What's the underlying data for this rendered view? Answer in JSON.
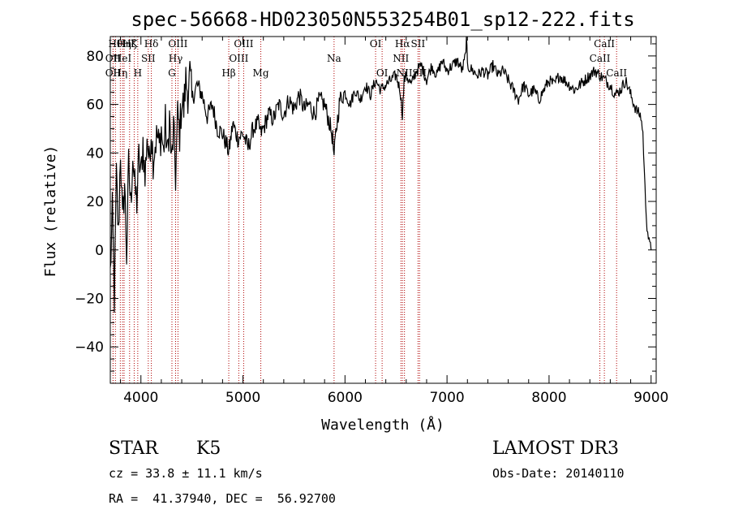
{
  "chart_data": {
    "type": "line",
    "title": "spec-56668-HD023050N553254B01_sp12-222.fits",
    "xlabel": "Wavelength (Å)",
    "ylabel": "Flux (relative)",
    "xlim": [
      3700,
      9050
    ],
    "ylim": [
      -55,
      88
    ],
    "xticks": [
      4000,
      5000,
      6000,
      7000,
      8000,
      9000
    ],
    "yticks": [
      -40,
      -20,
      0,
      20,
      40,
      60,
      80
    ],
    "ytick_labels": [
      "−40",
      "−20",
      "0",
      "20",
      "40",
      "60",
      "80"
    ],
    "series": [
      {
        "name": "flux",
        "x": [
          3700,
          3720,
          3740,
          3760,
          3780,
          3800,
          3820,
          3840,
          3860,
          3880,
          3900,
          3920,
          3940,
          3960,
          3980,
          4000,
          4020,
          4040,
          4060,
          4080,
          4100,
          4120,
          4140,
          4160,
          4180,
          4200,
          4220,
          4240,
          4260,
          4280,
          4300,
          4320,
          4340,
          4360,
          4380,
          4400,
          4420,
          4440,
          4460,
          4480,
          4500,
          4550,
          4600,
          4650,
          4700,
          4750,
          4800,
          4850,
          4861,
          4900,
          4950,
          5000,
          5050,
          5100,
          5150,
          5175,
          5200,
          5250,
          5300,
          5350,
          5400,
          5450,
          5500,
          5550,
          5600,
          5650,
          5700,
          5750,
          5800,
          5850,
          5880,
          5893,
          5910,
          5950,
          6000,
          6050,
          6100,
          6150,
          6200,
          6250,
          6300,
          6350,
          6400,
          6450,
          6500,
          6540,
          6563,
          6580,
          6600,
          6650,
          6700,
          6750,
          6800,
          6850,
          6900,
          6950,
          7000,
          7050,
          7100,
          7150,
          7180,
          7190,
          7200,
          7250,
          7300,
          7350,
          7400,
          7450,
          7500,
          7550,
          7600,
          7650,
          7700,
          7750,
          7800,
          7850,
          7900,
          7950,
          8000,
          8050,
          8100,
          8150,
          8200,
          8250,
          8300,
          8350,
          8400,
          8450,
          8500,
          8550,
          8600,
          8650,
          8700,
          8750,
          8800,
          8850,
          8900,
          8920,
          8940,
          8960,
          8980,
          9000
        ],
        "values": [
          -10,
          15,
          -20,
          30,
          5,
          42,
          10,
          28,
          -2,
          35,
          18,
          40,
          25,
          20,
          38,
          30,
          45,
          28,
          48,
          35,
          50,
          38,
          44,
          47,
          42,
          50,
          40,
          52,
          38,
          55,
          35,
          50,
          30,
          55,
          48,
          62,
          58,
          70,
          65,
          72,
          62,
          68,
          64,
          55,
          60,
          50,
          48,
          42,
          40,
          52,
          46,
          48,
          42,
          50,
          52,
          48,
          50,
          56,
          54,
          60,
          56,
          62,
          58,
          64,
          58,
          60,
          56,
          62,
          60,
          52,
          46,
          38,
          48,
          62,
          65,
          60,
          66,
          62,
          68,
          64,
          70,
          66,
          68,
          70,
          72,
          66,
          56,
          70,
          72,
          68,
          74,
          76,
          70,
          76,
          72,
          78,
          74,
          76,
          78,
          74,
          80,
          88,
          76,
          74,
          72,
          74,
          72,
          76,
          72,
          74,
          70,
          66,
          62,
          68,
          64,
          66,
          62,
          66,
          70,
          68,
          72,
          70,
          68,
          66,
          68,
          70,
          72,
          74,
          72,
          70,
          68,
          64,
          66,
          70,
          64,
          58,
          55,
          48,
          25,
          10,
          3,
          0
        ]
      }
    ],
    "lines": [
      {
        "wave": 3750,
        "name": "Hθ",
        "row": 1
      },
      {
        "wave": 3727,
        "name": "OII",
        "row": 2
      },
      {
        "wave": 3727,
        "name": "OII",
        "row": 3
      },
      {
        "wave": 3798,
        "name": "Hη",
        "row": 3
      },
      {
        "wave": 3820,
        "name": "HeI",
        "row": 2
      },
      {
        "wave": 3835,
        "name": "Hη",
        "row": 0
      },
      {
        "wave": 3889,
        "name": "Hζ",
        "row": 0
      },
      {
        "wave": 3934,
        "name": "K",
        "row": 1
      },
      {
        "wave": 3969,
        "name": "H",
        "row": 3
      },
      {
        "wave": 4072,
        "name": "SII",
        "row": 2
      },
      {
        "wave": 4102,
        "name": "Hδ",
        "row": 1
      },
      {
        "wave": 4304,
        "name": "G",
        "row": 3
      },
      {
        "wave": 4340,
        "name": "Hγ",
        "row": 2
      },
      {
        "wave": 4363,
        "name": "OIII",
        "row": 1
      },
      {
        "wave": 4861,
        "name": "Hβ",
        "row": 3
      },
      {
        "wave": 4959,
        "name": "OIII",
        "row": 2
      },
      {
        "wave": 5007,
        "name": "OIII",
        "row": 1
      },
      {
        "wave": 5175,
        "name": "Mg",
        "row": 3
      },
      {
        "wave": 5893,
        "name": "Na",
        "row": 2
      },
      {
        "wave": 6300,
        "name": "OI",
        "row": 1
      },
      {
        "wave": 6364,
        "name": "OI",
        "row": 3
      },
      {
        "wave": 6548,
        "name": "NII",
        "row": 2
      },
      {
        "wave": 6563,
        "name": "Hα",
        "row": 1
      },
      {
        "wave": 6583,
        "name": "NII",
        "row": 3
      },
      {
        "wave": 6716,
        "name": "SII",
        "row": 1
      },
      {
        "wave": 6731,
        "name": "SII",
        "row": 3
      },
      {
        "wave": 8498,
        "name": "CaII",
        "row": 2
      },
      {
        "wave": 8542,
        "name": "CaII",
        "row": 1
      },
      {
        "wave": 8662,
        "name": "CaII",
        "row": 3
      }
    ]
  },
  "info": {
    "object_type": "STAR",
    "subclass": "K5",
    "survey": "LAMOST DR3",
    "cz_line": "cz = 33.8 ± 11.1 km/s",
    "obs_date_line": "Obs-Date: 20140110",
    "radec_line": "RA =  41.37940, DEC =  56.92700"
  }
}
